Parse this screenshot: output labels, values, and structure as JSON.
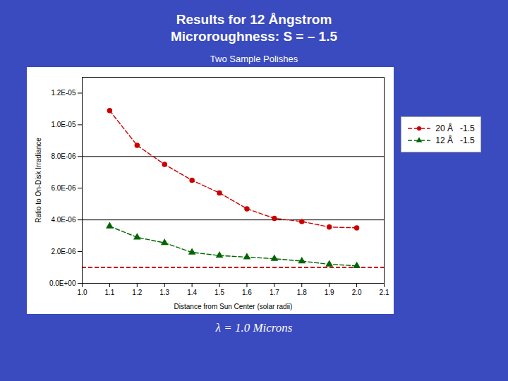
{
  "chart_data": {
    "type": "line",
    "title": "Results for 12 Ångstrom\nMicroroughness: S = – 1.5",
    "subtitle": "Two Sample Polishes",
    "caption": "λ = 1.0 Microns",
    "xlabel": "Distance from Sun Center (solar radii)",
    "ylabel": "Ratio to On-Disk Irradiance",
    "x": [
      1.1,
      1.2,
      1.3,
      1.4,
      1.5,
      1.6,
      1.7,
      1.8,
      1.9,
      2.0
    ],
    "series": [
      {
        "name": "20 Å   -1.5",
        "color": "#cc0000",
        "marker": "circle",
        "line_style": "dashed",
        "values": [
          1.09e-05,
          8.7e-06,
          7.5e-06,
          6.5e-06,
          5.7e-06,
          4.7e-06,
          4.1e-06,
          3.9e-06,
          3.55e-06,
          3.5e-06
        ]
      },
      {
        "name": "12 Å   -1.5",
        "color": "#006600",
        "marker": "triangle",
        "line_style": "dashed",
        "values": [
          3.6e-06,
          2.9e-06,
          2.55e-06,
          1.95e-06,
          1.75e-06,
          1.65e-06,
          1.55e-06,
          1.4e-06,
          1.2e-06,
          1.1e-06
        ]
      }
    ],
    "annotations": [
      {
        "type": "hline",
        "y": 1e-06,
        "color": "#cc0000",
        "line_style": "dashed"
      },
      {
        "type": "hline",
        "y": 4e-06,
        "color": "black",
        "line_style": "solid"
      },
      {
        "type": "hline",
        "y": 8e-06,
        "color": "black",
        "line_style": "solid"
      }
    ],
    "xlim": [
      1.0,
      2.1
    ],
    "xticks": [
      {
        "value": 1.0,
        "label": "1.0"
      },
      1.1,
      1.2,
      1.3,
      1.4,
      1.5,
      1.6,
      1.7,
      1.8,
      1.9,
      {
        "value": 2.0,
        "label": "2.0"
      },
      2.1
    ],
    "ylim": [
      0,
      1.3e-05
    ],
    "yticks": [
      {
        "value": 0,
        "label": "0.0E+00"
      },
      {
        "value": 2e-06,
        "label": "2.0E-06"
      },
      {
        "value": 4e-06,
        "label": "4.0E-06"
      },
      {
        "value": 6e-06,
        "label": "6.0E-06"
      },
      {
        "value": 8e-06,
        "label": "8.0E-06"
      },
      {
        "value": 1e-05,
        "label": "1.0E-05"
      },
      {
        "value": 1.2e-05,
        "label": "1.2E-05"
      }
    ],
    "grid": false,
    "legend": "right"
  }
}
